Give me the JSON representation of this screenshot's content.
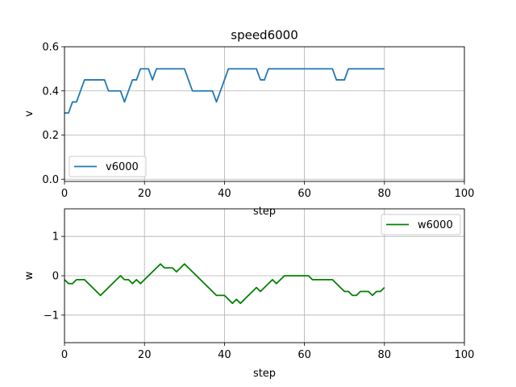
{
  "chart_data": [
    {
      "type": "line",
      "title": "speed6000",
      "xlabel": "step",
      "ylabel": "v",
      "xlim": [
        0,
        100
      ],
      "ylim": [
        -0.01,
        0.6
      ],
      "xticks": [
        0,
        20,
        40,
        60,
        80,
        100
      ],
      "yticks": [
        0.0,
        0.2,
        0.4,
        0.6
      ],
      "ytick_labels": [
        "0.0",
        "0.2",
        "0.4",
        "0.6"
      ],
      "grid": true,
      "legend_position": "lower-left",
      "series": [
        {
          "name": "v6000",
          "color": "#1f77b4",
          "x": [
            0,
            1,
            2,
            3,
            4,
            5,
            6,
            7,
            8,
            9,
            10,
            11,
            12,
            13,
            14,
            15,
            16,
            17,
            18,
            19,
            20,
            21,
            22,
            23,
            24,
            25,
            26,
            27,
            28,
            29,
            30,
            31,
            32,
            33,
            34,
            35,
            36,
            37,
            38,
            39,
            40,
            41,
            42,
            43,
            44,
            45,
            46,
            47,
            48,
            49,
            50,
            51,
            52,
            53,
            54,
            55,
            56,
            57,
            58,
            59,
            60,
            61,
            62,
            63,
            64,
            65,
            66,
            67,
            68,
            69,
            70,
            71,
            72,
            73,
            74,
            75,
            76,
            77,
            78,
            79,
            80
          ],
          "values": [
            0.3,
            0.3,
            0.35,
            0.35,
            0.4,
            0.45,
            0.45,
            0.45,
            0.45,
            0.45,
            0.45,
            0.4,
            0.4,
            0.4,
            0.4,
            0.35,
            0.4,
            0.45,
            0.45,
            0.5,
            0.5,
            0.5,
            0.45,
            0.5,
            0.5,
            0.5,
            0.5,
            0.5,
            0.5,
            0.5,
            0.5,
            0.45,
            0.4,
            0.4,
            0.4,
            0.4,
            0.4,
            0.4,
            0.35,
            0.4,
            0.45,
            0.5,
            0.5,
            0.5,
            0.5,
            0.5,
            0.5,
            0.5,
            0.5,
            0.45,
            0.45,
            0.5,
            0.5,
            0.5,
            0.5,
            0.5,
            0.5,
            0.5,
            0.5,
            0.5,
            0.5,
            0.5,
            0.5,
            0.5,
            0.5,
            0.5,
            0.5,
            0.5,
            0.45,
            0.45,
            0.45,
            0.5,
            0.5,
            0.5,
            0.5,
            0.5,
            0.5,
            0.5,
            0.5,
            0.5,
            0.5
          ]
        }
      ]
    },
    {
      "type": "line",
      "title": "",
      "xlabel": "step",
      "ylabel": "w",
      "xlim": [
        0,
        100
      ],
      "ylim": [
        -1.7,
        1.7
      ],
      "xticks": [
        0,
        20,
        40,
        60,
        80,
        100
      ],
      "yticks": [
        -1,
        0,
        1
      ],
      "ytick_labels": [
        "−1",
        "0",
        "1"
      ],
      "grid": true,
      "legend_position": "upper-right",
      "series": [
        {
          "name": "w6000",
          "color": "#008000",
          "x": [
            0,
            1,
            2,
            3,
            4,
            5,
            6,
            7,
            8,
            9,
            10,
            11,
            12,
            13,
            14,
            15,
            16,
            17,
            18,
            19,
            20,
            21,
            22,
            23,
            24,
            25,
            26,
            27,
            28,
            29,
            30,
            31,
            32,
            33,
            34,
            35,
            36,
            37,
            38,
            39,
            40,
            41,
            42,
            43,
            44,
            45,
            46,
            47,
            48,
            49,
            50,
            51,
            52,
            53,
            54,
            55,
            56,
            57,
            58,
            59,
            60,
            61,
            62,
            63,
            64,
            65,
            66,
            67,
            68,
            69,
            70,
            71,
            72,
            73,
            74,
            75,
            76,
            77,
            78,
            79,
            80
          ],
          "values": [
            -0.1,
            -0.2,
            -0.2,
            -0.1,
            -0.1,
            -0.1,
            -0.2,
            -0.3,
            -0.4,
            -0.5,
            -0.4,
            -0.3,
            -0.2,
            -0.1,
            0.0,
            -0.1,
            -0.1,
            -0.2,
            -0.1,
            -0.2,
            -0.1,
            0.0,
            0.1,
            0.2,
            0.3,
            0.2,
            0.2,
            0.2,
            0.1,
            0.2,
            0.3,
            0.2,
            0.1,
            0.0,
            -0.1,
            -0.2,
            -0.3,
            -0.4,
            -0.5,
            -0.5,
            -0.5,
            -0.6,
            -0.7,
            -0.6,
            -0.7,
            -0.6,
            -0.5,
            -0.4,
            -0.3,
            -0.4,
            -0.3,
            -0.2,
            -0.1,
            -0.2,
            -0.1,
            0.0,
            0.0,
            0.0,
            0.0,
            0.0,
            0.0,
            0.0,
            -0.1,
            -0.1,
            -0.1,
            -0.1,
            -0.1,
            -0.1,
            -0.2,
            -0.3,
            -0.4,
            -0.4,
            -0.5,
            -0.5,
            -0.4,
            -0.4,
            -0.4,
            -0.5,
            -0.4,
            -0.4,
            -0.3
          ]
        }
      ]
    }
  ]
}
